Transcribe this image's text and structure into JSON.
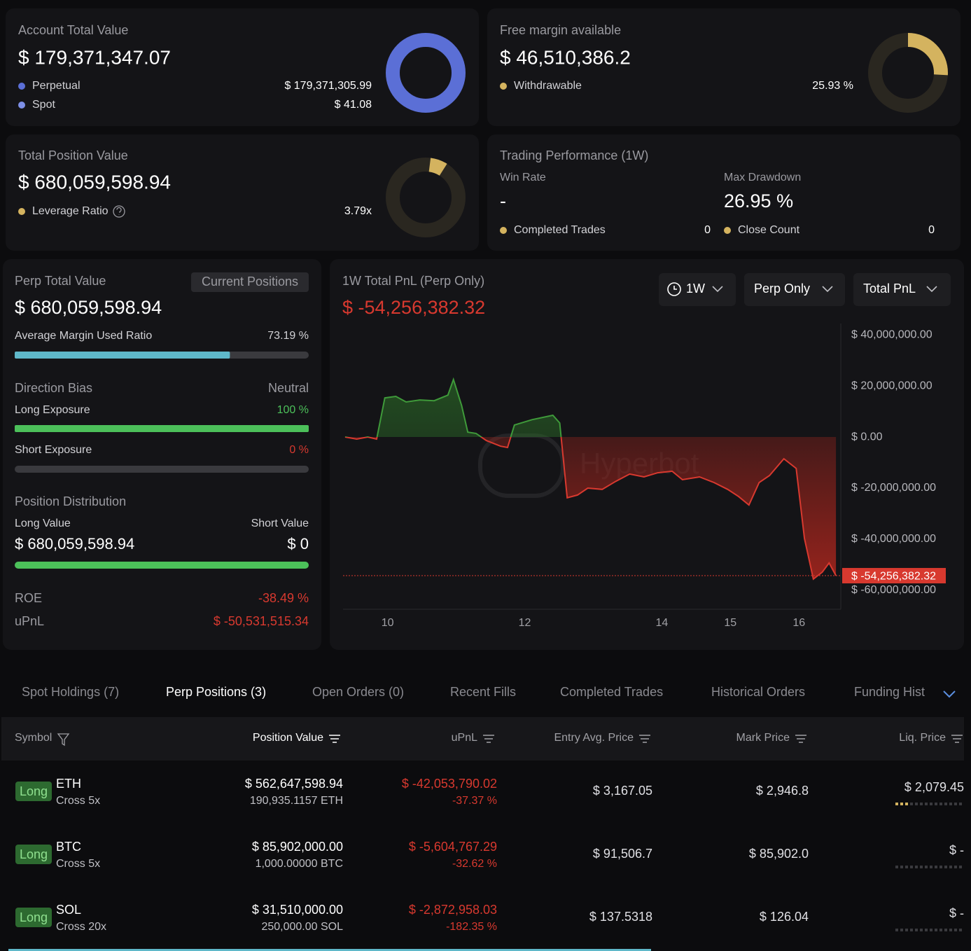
{
  "cards": {
    "account": {
      "title": "Account Total Value",
      "value": "$ 179,371,347.07",
      "items": [
        {
          "label": "Perpetual",
          "value": {
            "value": 179371305.99,
            "label": "$ 179,371,305.99"
          }
        },
        {
          "label": "Spot",
          "value": {
            "value": 41.08,
            "label": "$ 41.08"
          }
        }
      ]
    },
    "margin": {
      "title": "Free margin available",
      "value": "$ 46,510,386.2",
      "items": [
        {
          "label": "Withdrawable",
          "value": {
            "value": 25.93,
            "label": "25.93 %"
          }
        }
      ]
    },
    "position": {
      "title": "Total Position Value",
      "value": "$ 680,059,598.94",
      "items": [
        {
          "label": "Leverage Ratio",
          "value": "3.79x"
        }
      ]
    },
    "performance": {
      "title": "Trading Performance (1W)",
      "win_rate_label": "Win Rate",
      "win_rate": "-",
      "max_drawdown_label": "Max Drawdown",
      "max_drawdown": "26.95 %",
      "completed_trades_label": "Completed Trades",
      "completed_trades": 0,
      "close_count_label": "Close Count",
      "close_count": 0
    }
  },
  "perp": {
    "title": "Perp Total Value",
    "button": "Current Positions",
    "value": "$ 680,059,598.94",
    "margin_ratio_label": "Average Margin Used Ratio",
    "margin_ratio": {
      "value": 73.19,
      "label": "73.19 %"
    },
    "bias_label": "Direction Bias",
    "bias": "Neutral",
    "long_label": "Long Exposure",
    "long": {
      "value": 100,
      "label": "100 %"
    },
    "short_label": "Short Exposure",
    "short": {
      "value": 0,
      "label": "0 %"
    },
    "distribution_label": "Position Distribution",
    "long_value_label": "Long Value",
    "short_value_label": "Short Value",
    "long_value": "$ 680,059,598.94",
    "short_value": "$ 0",
    "roe_label": "ROE",
    "roe": "-38.49 %",
    "upnl_label": "uPnL",
    "upnl": "$ -50,531,515.34"
  },
  "pnl_chart": {
    "type": "line",
    "title": "1W Total PnL (Perp Only)",
    "filters": [
      "1W",
      "Perp Only",
      "Total PnL"
    ],
    "watermark": "Hyperbot",
    "current": {
      "value": -54256382.32,
      "label": "$ -54,256,382.32"
    },
    "x": [
      9.38,
      9.55,
      9.71,
      9.84,
      9.96,
      10.12,
      10.27,
      10.47,
      10.68,
      10.88,
      10.96,
      11.08,
      11.17,
      11.29,
      11.44,
      11.65,
      11.75,
      11.85,
      12.11,
      12.41,
      12.51,
      12.62,
      12.77,
      12.92,
      13.13,
      13.33,
      13.53,
      13.74,
      13.94,
      14.15,
      14.3,
      14.55,
      14.76,
      14.96,
      15.12,
      15.27,
      15.42,
      15.57,
      15.78,
      15.96,
      16.08,
      16.21,
      16.34,
      16.44,
      16.54
    ],
    "values": [
      0,
      -800000,
      0,
      -800000,
      15300000,
      15900000,
      13700000,
      14500000,
      14200000,
      16400000,
      22500000,
      12300000,
      1900000,
      1400000,
      -1400000,
      -3600000,
      -4100000,
      4700000,
      6800000,
      8500000,
      5500000,
      -23800000,
      -22700000,
      -20000000,
      -20500000,
      -17300000,
      -14500000,
      -15600000,
      -14000000,
      -13400000,
      -16700000,
      -15600000,
      -17800000,
      -20500000,
      -23300000,
      -26600000,
      -17800000,
      -15100000,
      -8500000,
      -12300000,
      -39700000,
      -55600000,
      -52900000,
      -49300000,
      -54256382.32
    ],
    "xlim": [
      9.35,
      16.6
    ],
    "xticks": [
      10,
      12,
      14,
      15,
      16
    ],
    "ylim": [
      -67400000,
      44400000
    ],
    "yticks": [
      {
        "value": 40000000,
        "label": "$ 40,000,000.00"
      },
      {
        "value": 20000000,
        "label": "$ 20,000,000.00"
      },
      {
        "value": 0,
        "label": "$ 0.00"
      },
      {
        "value": -20000000,
        "label": "$ -20,000,000.00"
      },
      {
        "value": -40000000,
        "label": "$ -40,000,000.00"
      },
      {
        "value": -60000000,
        "label": "$ -60,000,000.00"
      }
    ],
    "positive_color": "#3f9a3a",
    "negative_color": "#d8392f"
  },
  "tabs": {
    "items": [
      "Spot Holdings (7)",
      "Perp Positions (3)",
      "Open Orders (0)",
      "Recent Fills",
      "Completed Trades",
      "Historical Orders",
      "Funding Hist"
    ],
    "active": 1
  },
  "table": {
    "columns": [
      "Symbol",
      "Position Value",
      "uPnL",
      "Entry Avg. Price",
      "Mark Price",
      "Liq. Price"
    ],
    "rows": [
      {
        "side": "Long",
        "symbol": "ETH",
        "margin": "Cross 5x",
        "position_value": "$ 562,647,598.94",
        "size": "190,935.1157 ETH",
        "upnl": "$ -42,053,790.02",
        "upnl_pct": "-37.37 %",
        "entry": "$ 3,167.05",
        "mark": "$ 2,946.8",
        "liq": "$ 2,079.45"
      },
      {
        "side": "Long",
        "symbol": "BTC",
        "margin": "Cross 5x",
        "position_value": "$ 85,902,000.00",
        "size": "1,000.00000 BTC",
        "upnl": "$ -5,604,767.29",
        "upnl_pct": "-32.62 %",
        "entry": "$ 91,506.7",
        "mark": "$ 85,902.0",
        "liq": "$ -"
      },
      {
        "side": "Long",
        "symbol": "SOL",
        "margin": "Cross 20x",
        "position_value": "$ 31,510,000.00",
        "size": "250,000.00 SOL",
        "upnl": "$ -2,872,958.03",
        "upnl_pct": "-182.35 %",
        "entry": "$ 137.5318",
        "mark": "$ 126.04",
        "liq": "$ -"
      }
    ]
  }
}
